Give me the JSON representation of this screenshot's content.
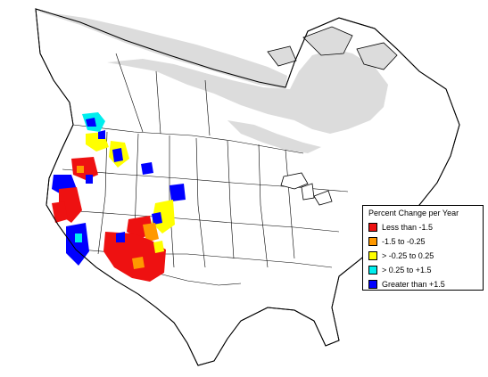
{
  "legend": {
    "title": "Percent Change per Year",
    "items": [
      {
        "label": "Less than -1.5",
        "color": "#ee1111"
      },
      {
        "label": "-1.5 to -0.25",
        "color": "#ff9900"
      },
      {
        "label": "> -0.25 to 0.25",
        "color": "#ffff00"
      },
      {
        "label": "> 0.25 to +1.5",
        "color": "#00eeee"
      },
      {
        "label": "Greater than +1.5",
        "color": "#0000ff"
      }
    ]
  },
  "map": {
    "region": "North America",
    "no_data_color": "#dcdcdc",
    "land_color": "#ffffff",
    "boundary_color": "#000000"
  }
}
